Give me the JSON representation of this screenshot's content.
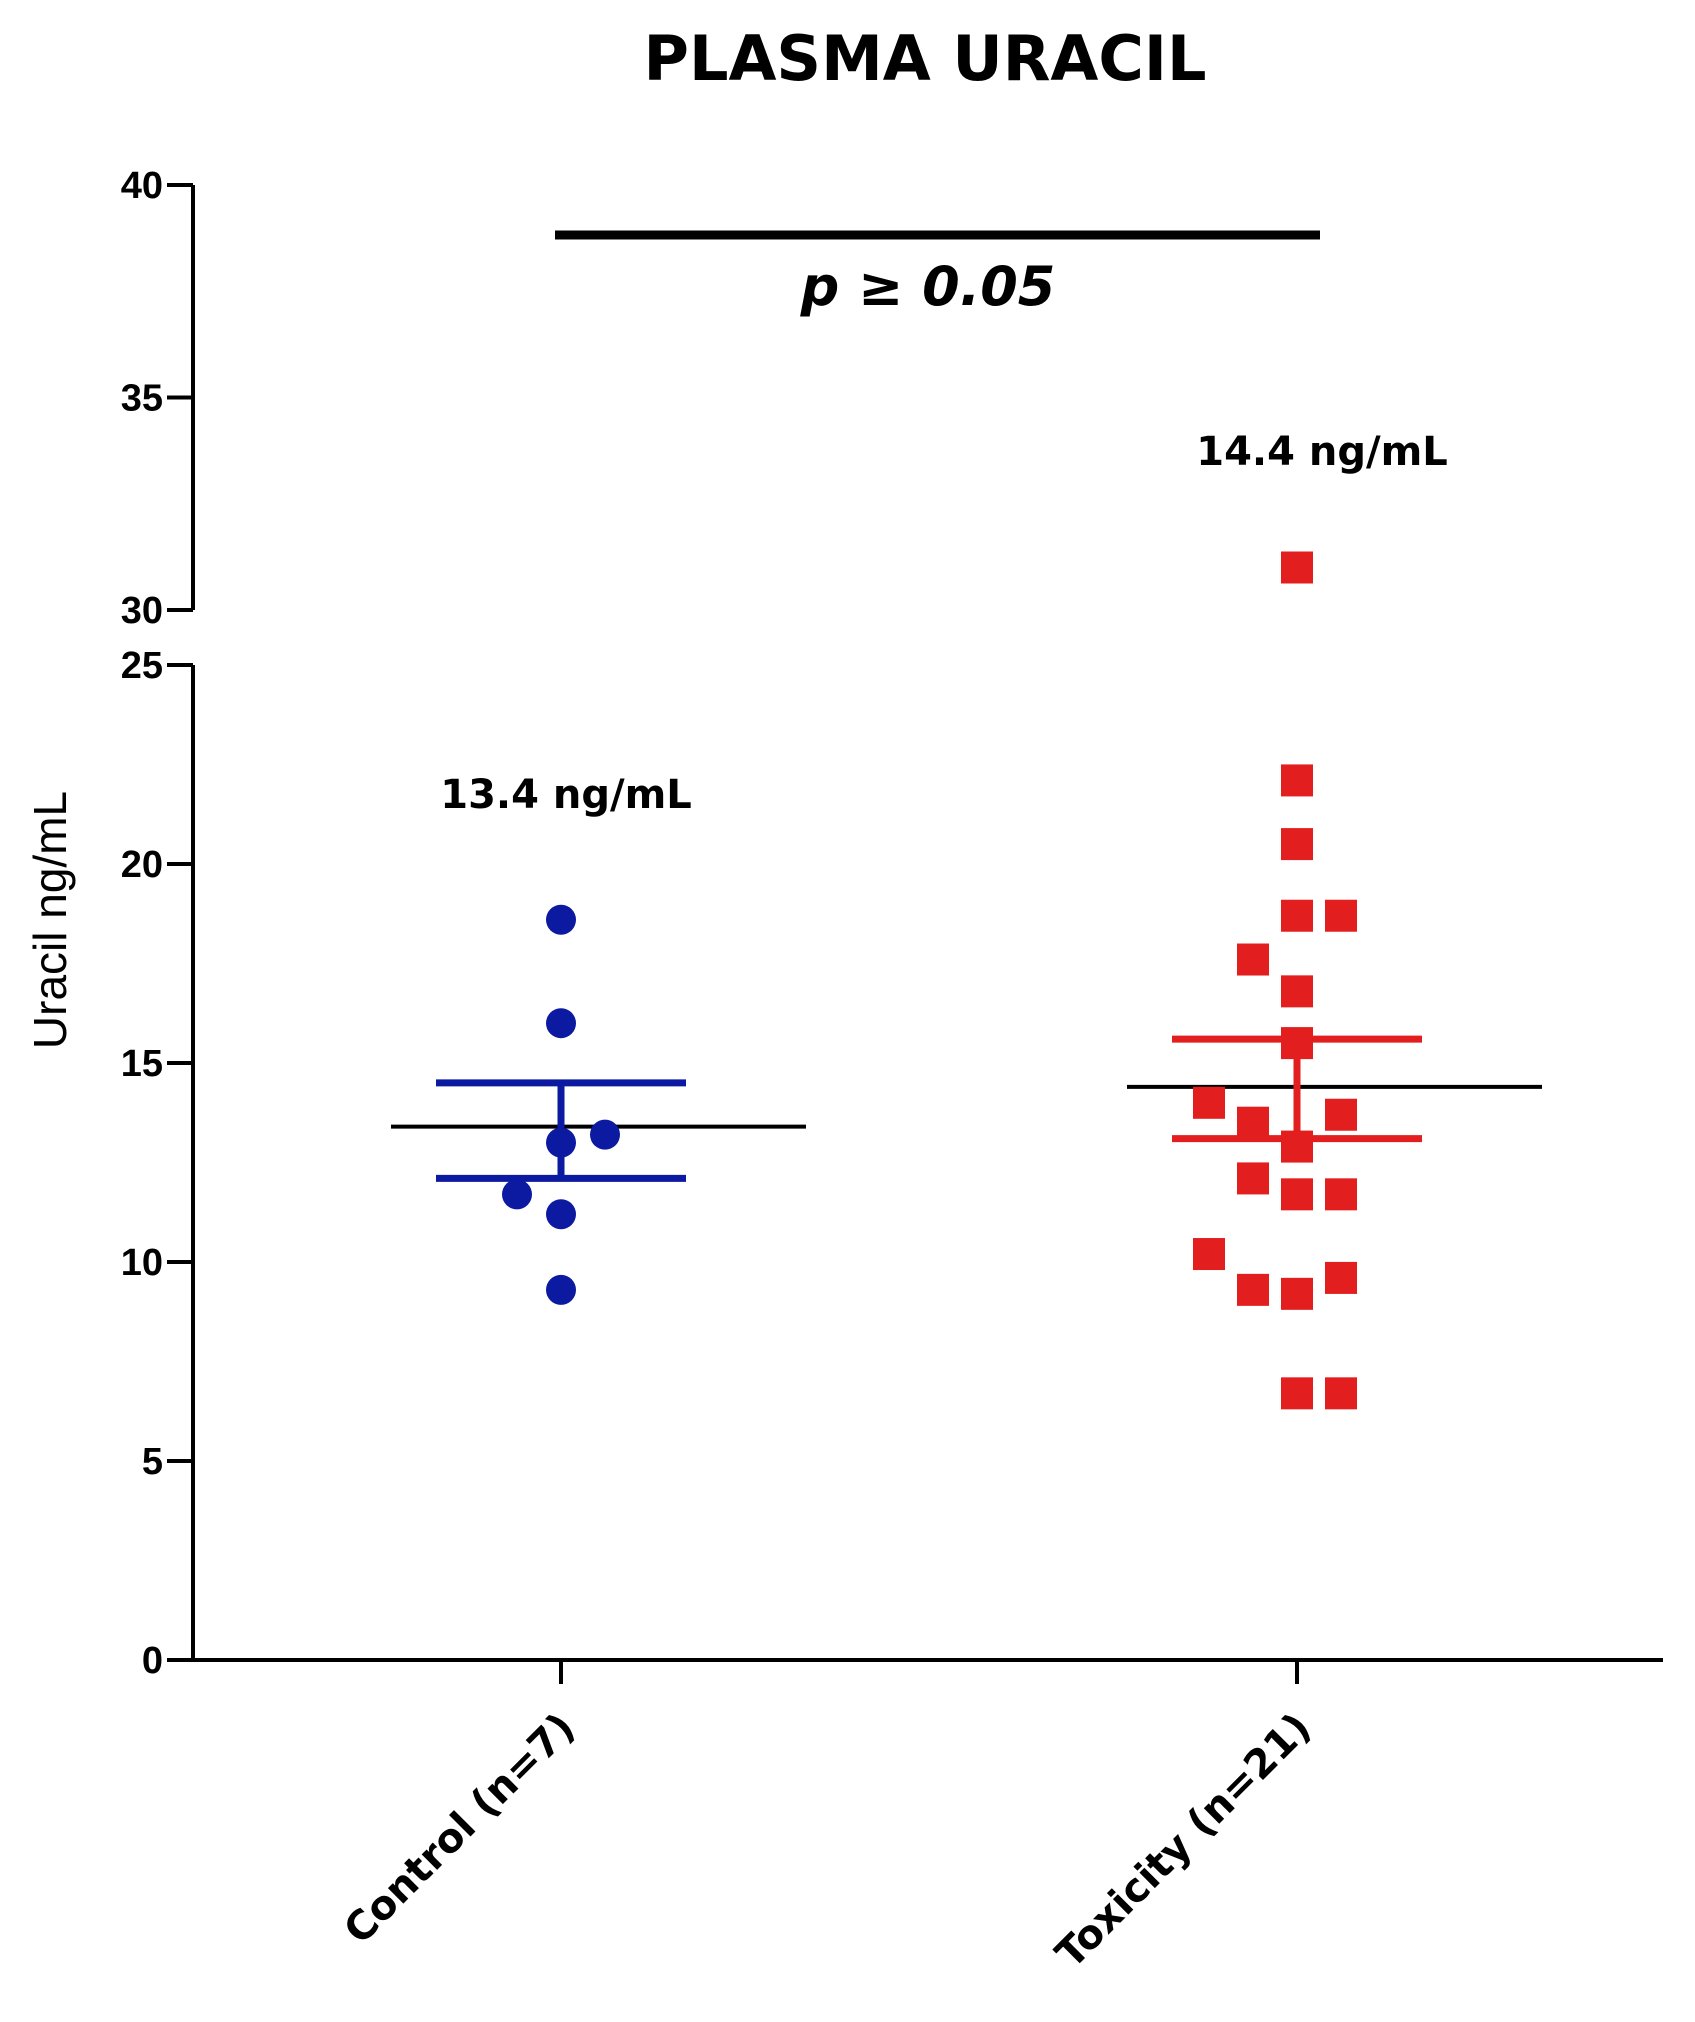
{
  "chart_data": {
    "type": "scatter",
    "title": "PLASMA URACIL",
    "ylabel": "Uracil ng/mL",
    "xlabel": "",
    "ylim": [
      0,
      40
    ],
    "axis_break": [
      25,
      30
    ],
    "yticks_lower": [
      0,
      5,
      10,
      15,
      20,
      25
    ],
    "yticks_upper": [
      30,
      35,
      40
    ],
    "categories": [
      "Control (n=7)",
      "Toxicity (n=21)"
    ],
    "series": [
      {
        "name": "Control (n=7)",
        "marker": "circle",
        "color": "#0b1aa0",
        "values": [
          18.6,
          16.0,
          13.0,
          13.2,
          11.7,
          11.2,
          9.3
        ],
        "offsets": [
          0,
          0,
          0,
          1,
          -1,
          0,
          0
        ],
        "mean": 13.4,
        "sem_upper": 14.5,
        "sem_lower": 12.1,
        "mean_label": "13.4 ng/mL"
      },
      {
        "name": "Toxicity (n=21)",
        "marker": "square",
        "color": "#e31e1e",
        "values": [
          31.0,
          22.1,
          20.5,
          18.7,
          18.7,
          17.6,
          16.8,
          15.5,
          14.0,
          13.5,
          13.7,
          12.9,
          12.1,
          11.7,
          11.7,
          10.2,
          9.3,
          9.2,
          9.6,
          6.7,
          6.7
        ],
        "offsets": [
          0,
          0,
          0,
          0,
          1,
          -1,
          0,
          0,
          -2,
          -1,
          1,
          0,
          -1,
          0,
          1,
          -2,
          -1,
          0,
          1,
          0,
          1
        ],
        "mean": 14.4,
        "sem_upper": 15.6,
        "sem_lower": 13.1,
        "mean_label": "14.4 ng/mL"
      }
    ],
    "annotation": "p ≥ 0.05"
  }
}
